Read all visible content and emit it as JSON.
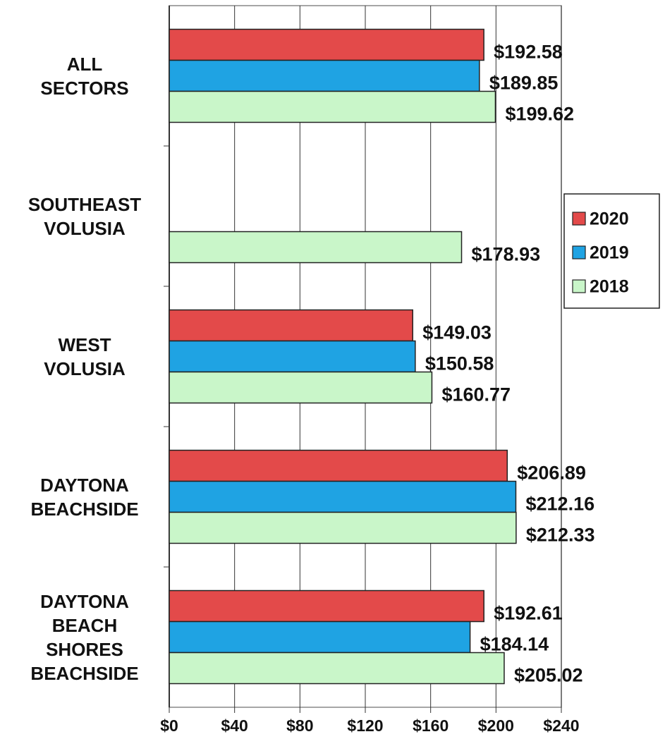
{
  "chart_data": {
    "type": "bar",
    "orientation": "horizontal",
    "categories": [
      "ALL SECTORS",
      "SOUTHEAST VOLUSIA",
      "WEST VOLUSIA",
      "DAYTONA BEACHSIDE",
      "DAYTONA BEACH SHORES BEACHSIDE"
    ],
    "series": [
      {
        "name": "2020",
        "color": "#e34a4a",
        "values": [
          192.58,
          null,
          149.03,
          206.89,
          192.61
        ],
        "value_labels": [
          "$192.58",
          null,
          "$149.03",
          "$206.89",
          "$192.61"
        ]
      },
      {
        "name": "2019",
        "color": "#1fa3e3",
        "values": [
          189.85,
          null,
          150.58,
          212.16,
          184.14
        ],
        "value_labels": [
          "$189.85",
          null,
          "$150.58",
          "$212.16",
          "$184.14"
        ]
      },
      {
        "name": "2018",
        "color": "#c9f6c9",
        "values": [
          199.62,
          178.93,
          160.77,
          212.33,
          205.02
        ],
        "value_labels": [
          "$199.62",
          "$178.93",
          "$160.77",
          "$212.33",
          "$205.02"
        ]
      }
    ],
    "xlim": [
      0,
      240
    ],
    "xticks": [
      {
        "value": 0,
        "label": "$0"
      },
      {
        "value": 40,
        "label": "$40"
      },
      {
        "value": 80,
        "label": "$80"
      },
      {
        "value": 120,
        "label": "$120"
      },
      {
        "value": 160,
        "label": "$160"
      },
      {
        "value": 200,
        "label": "$200"
      },
      {
        "value": 240,
        "label": "$240"
      }
    ],
    "grid": true,
    "legend": "right"
  }
}
